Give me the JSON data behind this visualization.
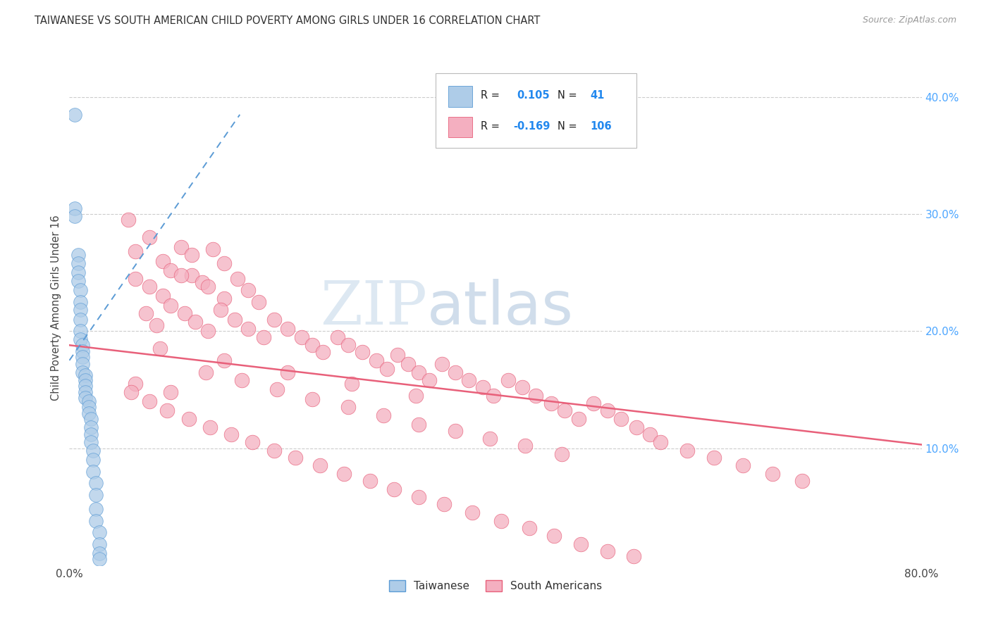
{
  "title": "TAIWANESE VS SOUTH AMERICAN CHILD POVERTY AMONG GIRLS UNDER 16 CORRELATION CHART",
  "source": "Source: ZipAtlas.com",
  "ylabel": "Child Poverty Among Girls Under 16",
  "xlim": [
    0.0,
    0.8
  ],
  "ylim": [
    0.0,
    0.44
  ],
  "yticks_right": [
    0.1,
    0.2,
    0.3,
    0.4
  ],
  "ytick_right_labels": [
    "10.0%",
    "20.0%",
    "30.0%",
    "40.0%"
  ],
  "taiwanese_color": "#aecce8",
  "southamerican_color": "#f4afc0",
  "taiwanese_line_color": "#5b9bd5",
  "southamerican_line_color": "#e8607a",
  "watermark_zip": "ZIP",
  "watermark_atlas": "atlas",
  "taiwanese_x": [
    0.005,
    0.005,
    0.005,
    0.008,
    0.008,
    0.008,
    0.008,
    0.01,
    0.01,
    0.01,
    0.01,
    0.01,
    0.01,
    0.012,
    0.012,
    0.012,
    0.012,
    0.012,
    0.015,
    0.015,
    0.015,
    0.015,
    0.015,
    0.018,
    0.018,
    0.018,
    0.02,
    0.02,
    0.02,
    0.02,
    0.022,
    0.022,
    0.022,
    0.025,
    0.025,
    0.025,
    0.025,
    0.028,
    0.028,
    0.028,
    0.028
  ],
  "taiwanese_y": [
    0.385,
    0.305,
    0.298,
    0.265,
    0.258,
    0.25,
    0.243,
    0.235,
    0.225,
    0.218,
    0.21,
    0.2,
    0.193,
    0.188,
    0.183,
    0.178,
    0.172,
    0.165,
    0.162,
    0.158,
    0.153,
    0.148,
    0.143,
    0.14,
    0.135,
    0.13,
    0.125,
    0.118,
    0.112,
    0.105,
    0.098,
    0.09,
    0.08,
    0.07,
    0.06,
    0.048,
    0.038,
    0.028,
    0.018,
    0.01,
    0.005
  ],
  "southamerican_x": [
    0.055,
    0.062,
    0.075,
    0.088,
    0.095,
    0.105,
    0.115,
    0.125,
    0.135,
    0.145,
    0.062,
    0.075,
    0.088,
    0.105,
    0.115,
    0.13,
    0.145,
    0.158,
    0.168,
    0.178,
    0.072,
    0.082,
    0.095,
    0.108,
    0.118,
    0.13,
    0.142,
    0.155,
    0.168,
    0.182,
    0.192,
    0.205,
    0.218,
    0.228,
    0.238,
    0.252,
    0.262,
    0.275,
    0.288,
    0.298,
    0.308,
    0.318,
    0.328,
    0.338,
    0.35,
    0.362,
    0.375,
    0.388,
    0.398,
    0.412,
    0.425,
    0.438,
    0.452,
    0.465,
    0.478,
    0.492,
    0.505,
    0.518,
    0.532,
    0.545,
    0.062,
    0.095,
    0.128,
    0.162,
    0.195,
    0.228,
    0.262,
    0.295,
    0.328,
    0.362,
    0.395,
    0.428,
    0.462,
    0.058,
    0.075,
    0.092,
    0.112,
    0.132,
    0.152,
    0.172,
    0.192,
    0.212,
    0.235,
    0.258,
    0.282,
    0.305,
    0.328,
    0.352,
    0.378,
    0.405,
    0.432,
    0.455,
    0.48,
    0.505,
    0.53,
    0.555,
    0.58,
    0.605,
    0.632,
    0.66,
    0.688,
    0.085,
    0.145,
    0.205,
    0.265,
    0.325
  ],
  "southamerican_y": [
    0.295,
    0.268,
    0.28,
    0.26,
    0.252,
    0.272,
    0.248,
    0.242,
    0.27,
    0.258,
    0.245,
    0.238,
    0.23,
    0.248,
    0.265,
    0.238,
    0.228,
    0.245,
    0.235,
    0.225,
    0.215,
    0.205,
    0.222,
    0.215,
    0.208,
    0.2,
    0.218,
    0.21,
    0.202,
    0.195,
    0.21,
    0.202,
    0.195,
    0.188,
    0.182,
    0.195,
    0.188,
    0.182,
    0.175,
    0.168,
    0.18,
    0.172,
    0.165,
    0.158,
    0.172,
    0.165,
    0.158,
    0.152,
    0.145,
    0.158,
    0.152,
    0.145,
    0.138,
    0.132,
    0.125,
    0.138,
    0.132,
    0.125,
    0.118,
    0.112,
    0.155,
    0.148,
    0.165,
    0.158,
    0.15,
    0.142,
    0.135,
    0.128,
    0.12,
    0.115,
    0.108,
    0.102,
    0.095,
    0.148,
    0.14,
    0.132,
    0.125,
    0.118,
    0.112,
    0.105,
    0.098,
    0.092,
    0.085,
    0.078,
    0.072,
    0.065,
    0.058,
    0.052,
    0.045,
    0.038,
    0.032,
    0.025,
    0.018,
    0.012,
    0.008,
    0.105,
    0.098,
    0.092,
    0.085,
    0.078,
    0.072,
    0.185,
    0.175,
    0.165,
    0.155,
    0.145
  ],
  "sa_trend_x0": 0.0,
  "sa_trend_y0": 0.188,
  "sa_trend_x1": 0.8,
  "sa_trend_y1": 0.103,
  "tw_trend_x0": 0.0,
  "tw_trend_y0": 0.175,
  "tw_trend_x1": 0.16,
  "tw_trend_y1": 0.385
}
